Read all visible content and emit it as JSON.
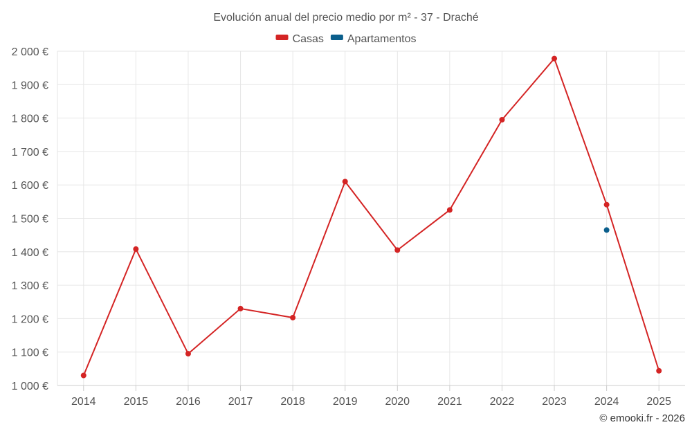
{
  "chart_data": {
    "type": "line",
    "title": "Evolución anual del precio medio por m² - 37 - Draché",
    "categories": [
      "2014",
      "2015",
      "2016",
      "2017",
      "2018",
      "2019",
      "2020",
      "2021",
      "2022",
      "2023",
      "2024",
      "2025"
    ],
    "series": [
      {
        "name": "Casas",
        "color": "#d42424",
        "values": [
          1030,
          1408,
          1095,
          1230,
          1203,
          1610,
          1405,
          1525,
          1795,
          1978,
          1541,
          1044
        ]
      },
      {
        "name": "Apartamentos",
        "color": "#0b5f8c",
        "values": [
          null,
          null,
          null,
          null,
          null,
          null,
          null,
          null,
          null,
          null,
          1465,
          null
        ]
      }
    ],
    "ylim": [
      1000,
      2000
    ],
    "yticks": [
      1000,
      1100,
      1200,
      1300,
      1400,
      1500,
      1600,
      1700,
      1800,
      1900,
      2000
    ],
    "ytick_labels": [
      "1 000 €",
      "1 100 €",
      "1 200 €",
      "1 300 €",
      "1 400 €",
      "1 500 €",
      "1 600 €",
      "1 700 €",
      "1 800 €",
      "1 900 €",
      "2 000 €"
    ],
    "xlabel": "",
    "ylabel": "",
    "grid": true,
    "legend_position": "top-center",
    "credit": "© emooki.fr - 2026"
  }
}
